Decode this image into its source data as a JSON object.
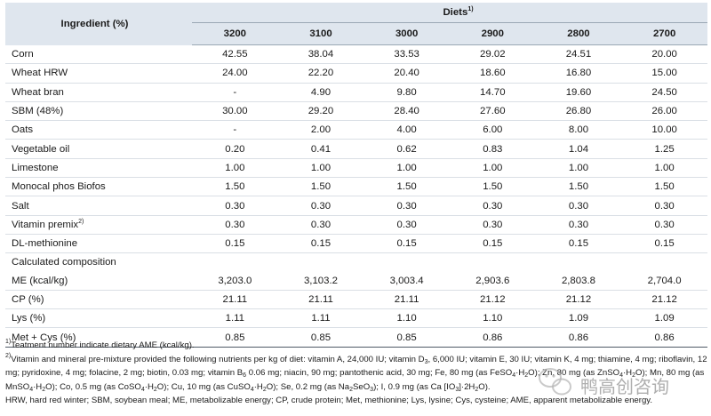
{
  "table": {
    "header_ingredient": "Ingredient (%)",
    "header_diets": "Diets",
    "header_diets_sup": "1)",
    "diets": [
      "3200",
      "3100",
      "3000",
      "2900",
      "2800",
      "2700"
    ],
    "ingredients": [
      {
        "label": "Corn",
        "values": [
          "42.55",
          "38.04",
          "33.53",
          "29.02",
          "24.51",
          "20.00"
        ]
      },
      {
        "label": "Wheat HRW",
        "values": [
          "24.00",
          "22.20",
          "20.40",
          "18.60",
          "16.80",
          "15.00"
        ]
      },
      {
        "label": "Wheat bran",
        "values": [
          "-",
          "4.90",
          "9.80",
          "14.70",
          "19.60",
          "24.50"
        ]
      },
      {
        "label": "SBM (48%)",
        "values": [
          "30.00",
          "29.20",
          "28.40",
          "27.60",
          "26.80",
          "26.00"
        ]
      },
      {
        "label": "Oats",
        "values": [
          "-",
          "2.00",
          "4.00",
          "6.00",
          "8.00",
          "10.00"
        ]
      },
      {
        "label": "Vegetable oil",
        "values": [
          "0.20",
          "0.41",
          "0.62",
          "0.83",
          "1.04",
          "1.25"
        ]
      },
      {
        "label": "Limestone",
        "values": [
          "1.00",
          "1.00",
          "1.00",
          "1.00",
          "1.00",
          "1.00"
        ]
      },
      {
        "label": "Monocal phos Biofos",
        "values": [
          "1.50",
          "1.50",
          "1.50",
          "1.50",
          "1.50",
          "1.50"
        ]
      },
      {
        "label": "Salt",
        "values": [
          "0.30",
          "0.30",
          "0.30",
          "0.30",
          "0.30",
          "0.30"
        ]
      },
      {
        "label": "Vitamin premix",
        "sup": "2)",
        "values": [
          "0.30",
          "0.30",
          "0.30",
          "0.30",
          "0.30",
          "0.30"
        ]
      },
      {
        "label": "DL-methionine",
        "values": [
          "0.15",
          "0.15",
          "0.15",
          "0.15",
          "0.15",
          "0.15"
        ]
      }
    ],
    "calc_label": "Calculated composition",
    "calculated": [
      {
        "label": "ME (kcal/kg)",
        "values": [
          "3,203.0",
          "3,103.2",
          "3,003.4",
          "2,903.6",
          "2,803.8",
          "2,704.0"
        ]
      },
      {
        "label": "CP (%)",
        "values": [
          "21.11",
          "21.11",
          "21.11",
          "21.12",
          "21.12",
          "21.12"
        ]
      },
      {
        "label": "Lys (%)",
        "values": [
          "1.11",
          "1.11",
          "1.10",
          "1.10",
          "1.09",
          "1.09"
        ]
      },
      {
        "label": "Met + Cys (%)",
        "values": [
          "0.85",
          "0.85",
          "0.85",
          "0.86",
          "0.86",
          "0.86"
        ]
      }
    ]
  },
  "footnotes": {
    "n1": {
      "marker": "1)",
      "text": "Teatment number indicate dietary AME (kcal/kg)."
    },
    "n2": {
      "marker": "2)",
      "t1": "Vitamin and mineral pre-mixture provided the following nutrients per kg of diet: vitamin A, 24,000 IU; vitamin D",
      "s1": "3",
      "t2": ", 6,000 IU; vitamin E, 30 IU; vitamin K, 4 mg; thiamine, 4 mg; riboflavin, 12 mg; pyridoxine, 4 mg; folacine, 2 mg; biotin, 0.03 mg; vitamin B",
      "s2": "6",
      "t3": " 0.06 mg; niacin, 90 mg; pantothenic acid, 30 mg; Fe, 80 mg (as FeSO",
      "s3": "4",
      "t4": "·H",
      "s4": "2",
      "t5": "O); Zn, 80 mg (as ZnSO",
      "s5": "4",
      "t6": "·H",
      "s6": "2",
      "t7": "O); Mn, 80 mg (as MnSO",
      "s7": "4",
      "t8": "·H",
      "s8": "2",
      "t9": "O); Co, 0.5 mg (as CoSO",
      "s9": "4",
      "t10": "·H",
      "s10": "2",
      "t11": "O); Cu, 10 mg (as CuSO",
      "s11": "4",
      "t12": "·H",
      "s12": "2",
      "t13": "O); Se, 0.2 mg (as Na",
      "s13": "2",
      "t14": "SeO",
      "s14": "3",
      "t15": "); I, 0.9 mg (as Ca [IO",
      "s15": "3",
      "t16": "]·2H",
      "s16": "2",
      "t17": "O)."
    },
    "abbrev": "HRW, hard red winter; SBM, soybean meal; ME, metabolizable energy; CP, crude protein; Met, methionine; Lys, lysine; Cys, cysteine; AME, apparent metabolizable energy."
  },
  "watermark": {
    "text": "鸭高创咨询",
    "icon": "wechat-logo-icon"
  }
}
